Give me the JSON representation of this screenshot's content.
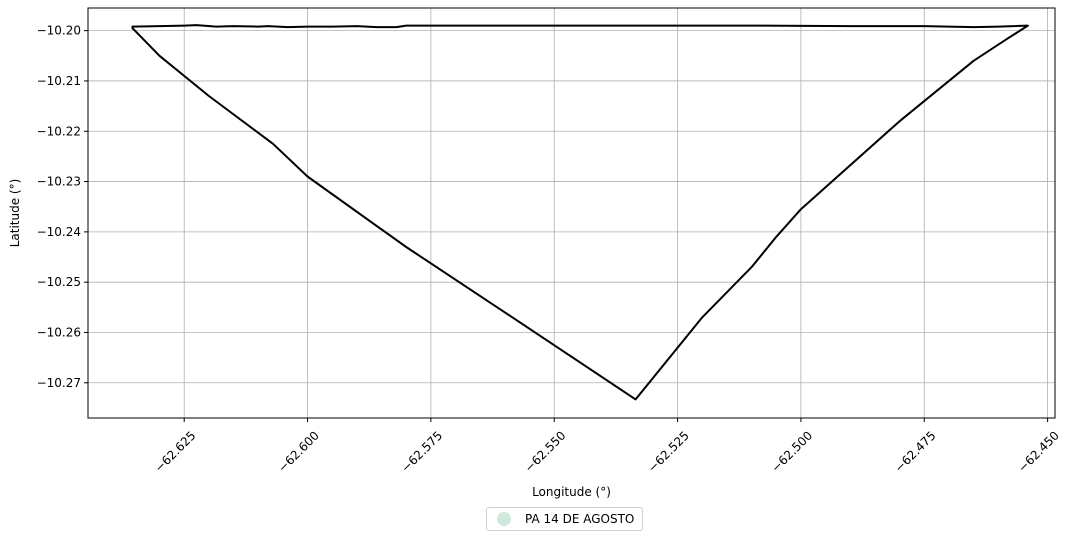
{
  "chart_data": {
    "type": "line",
    "title": "",
    "xlabel": "Longitude (°)",
    "ylabel": "Latitude (°)",
    "xlim": [
      -62.6445,
      -62.4485
    ],
    "ylim": [
      -10.277,
      -10.1955
    ],
    "xticks": [
      -62.625,
      -62.6,
      -62.575,
      -62.55,
      -62.525,
      -62.5,
      -62.475,
      -62.45
    ],
    "xtick_labels": [
      "−62.625",
      "−62.600",
      "−62.575",
      "−62.550",
      "−62.525",
      "−62.500",
      "−62.475",
      "−62.450"
    ],
    "yticks": [
      -10.2,
      -10.21,
      -10.22,
      -10.23,
      -10.24,
      -10.25,
      -10.26,
      -10.27
    ],
    "ytick_labels": [
      "−10.20",
      "−10.21",
      "−10.22",
      "−10.23",
      "−10.24",
      "−10.25",
      "−10.26",
      "−10.27"
    ],
    "grid": true,
    "legend_position": "bottom-center",
    "series": [
      {
        "name": "PA 14 DE AGOSTO",
        "color": "#000000",
        "marker_color": "#cfe8dc",
        "points": [
          [
            -62.6355,
            -10.1992
          ],
          [
            -62.63,
            -10.1991
          ],
          [
            -62.625,
            -10.199
          ],
          [
            -62.6225,
            -10.1989
          ],
          [
            -62.6185,
            -10.1992
          ],
          [
            -62.615,
            -10.1991
          ],
          [
            -62.61,
            -10.1992
          ],
          [
            -62.608,
            -10.1991
          ],
          [
            -62.604,
            -10.1993
          ],
          [
            -62.6,
            -10.1992
          ],
          [
            -62.595,
            -10.1992
          ],
          [
            -62.59,
            -10.1991
          ],
          [
            -62.586,
            -10.1993
          ],
          [
            -62.582,
            -10.1993
          ],
          [
            -62.58,
            -10.199
          ],
          [
            -62.57,
            -10.199
          ],
          [
            -62.55,
            -10.199
          ],
          [
            -62.53,
            -10.199
          ],
          [
            -62.51,
            -10.199
          ],
          [
            -62.49,
            -10.1991
          ],
          [
            -62.475,
            -10.1991
          ],
          [
            -62.465,
            -10.1993
          ],
          [
            -62.46,
            -10.1992
          ],
          [
            -62.454,
            -10.199
          ],
          [
            -62.458,
            -10.2015
          ],
          [
            -62.465,
            -10.206
          ],
          [
            -62.48,
            -10.218
          ],
          [
            -62.5,
            -10.2355
          ],
          [
            -62.505,
            -10.241
          ],
          [
            -62.51,
            -10.247
          ],
          [
            -62.52,
            -10.257
          ],
          [
            -62.5335,
            -10.2733
          ],
          [
            -62.56,
            -10.256
          ],
          [
            -62.58,
            -10.243
          ],
          [
            -62.6,
            -10.229
          ],
          [
            -62.607,
            -10.2225
          ],
          [
            -62.62,
            -10.213
          ],
          [
            -62.63,
            -10.205
          ],
          [
            -62.6355,
            -10.1995
          ]
        ]
      }
    ]
  }
}
